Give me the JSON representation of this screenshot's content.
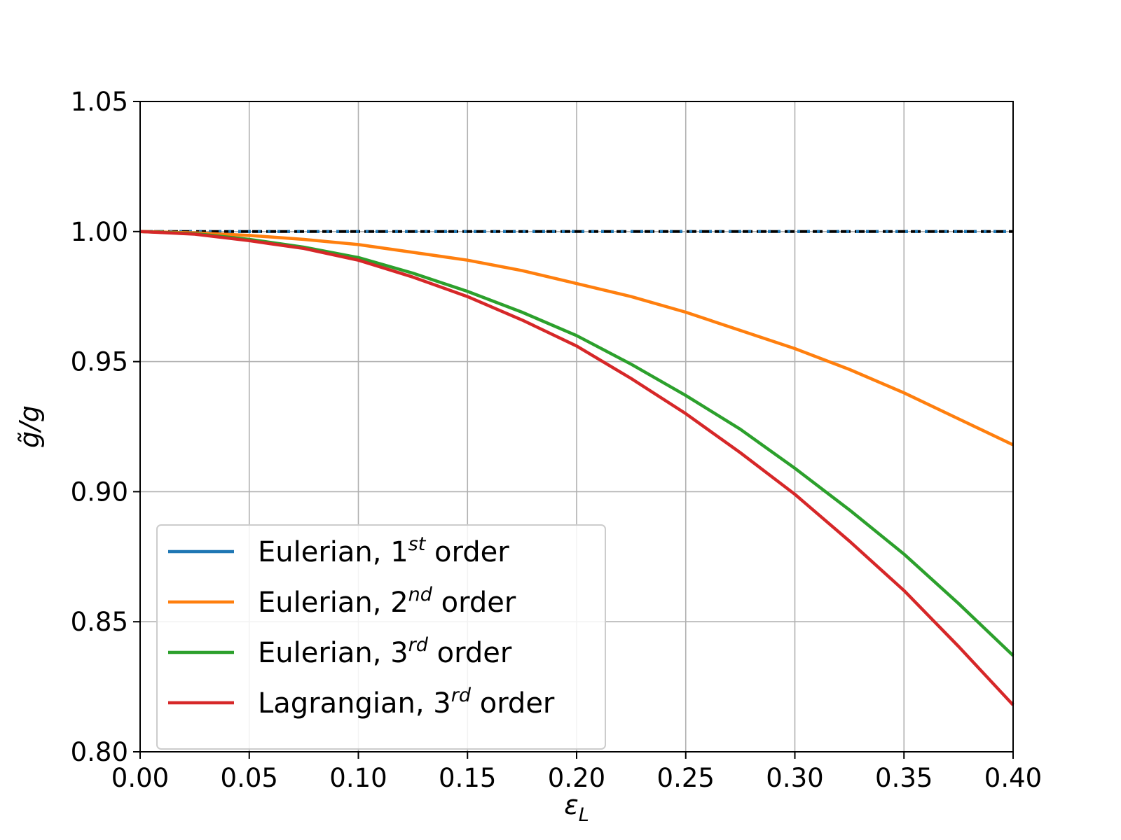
{
  "chart_data": {
    "type": "line",
    "xlabel_symbol": "ε",
    "xlabel_subscript": "L",
    "ylabel": "g̃/g",
    "xlim": [
      0.0,
      0.4
    ],
    "ylim": [
      0.8,
      1.05
    ],
    "xticks": [
      "0.00",
      "0.05",
      "0.10",
      "0.15",
      "0.20",
      "0.25",
      "0.30",
      "0.35",
      "0.40"
    ],
    "yticks": [
      "0.80",
      "0.85",
      "0.90",
      "0.95",
      "1.00",
      "1.05"
    ],
    "grid": true,
    "legend_position": "lower-left",
    "reference_line": {
      "y": 1.0,
      "color": "#000000",
      "style": "dashed"
    },
    "x": [
      0.0,
      0.025,
      0.05,
      0.075,
      0.1,
      0.125,
      0.15,
      0.175,
      0.2,
      0.225,
      0.25,
      0.275,
      0.3,
      0.325,
      0.35,
      0.375,
      0.4
    ],
    "series": [
      {
        "name": "Eulerian, 1st order",
        "label_main": "Eulerian, 1",
        "label_sup": "st",
        "label_end": " order",
        "color": "#1f77b4",
        "style": "dotted",
        "values": [
          1.0,
          1.0,
          1.0,
          1.0,
          1.0,
          1.0,
          1.0,
          1.0,
          1.0,
          1.0,
          1.0,
          1.0,
          1.0,
          1.0,
          1.0,
          1.0,
          1.0
        ]
      },
      {
        "name": "Eulerian, 2nd order",
        "label_main": "Eulerian, 2",
        "label_sup": "nd",
        "label_end": " order",
        "color": "#ff7f0e",
        "style": "solid",
        "values": [
          1.0,
          0.9995,
          0.9985,
          0.997,
          0.995,
          0.992,
          0.989,
          0.985,
          0.98,
          0.975,
          0.969,
          0.962,
          0.955,
          0.947,
          0.938,
          0.928,
          0.918
        ]
      },
      {
        "name": "Eulerian, 3rd order",
        "label_main": "Eulerian, 3",
        "label_sup": "rd",
        "label_end": " order",
        "color": "#2ca02c",
        "style": "solid",
        "values": [
          1.0,
          0.9992,
          0.997,
          0.994,
          0.99,
          0.984,
          0.977,
          0.969,
          0.96,
          0.949,
          0.937,
          0.924,
          0.909,
          0.893,
          0.876,
          0.857,
          0.837
        ]
      },
      {
        "name": "Lagrangian, 3rd order",
        "label_main": "Lagrangian, 3",
        "label_sup": "rd",
        "label_end": " order",
        "color": "#d62728",
        "style": "solid",
        "values": [
          1.0,
          0.999,
          0.9965,
          0.9935,
          0.989,
          0.9825,
          0.975,
          0.966,
          0.956,
          0.9435,
          0.93,
          0.915,
          0.899,
          0.881,
          0.862,
          0.8405,
          0.818
        ]
      }
    ]
  }
}
